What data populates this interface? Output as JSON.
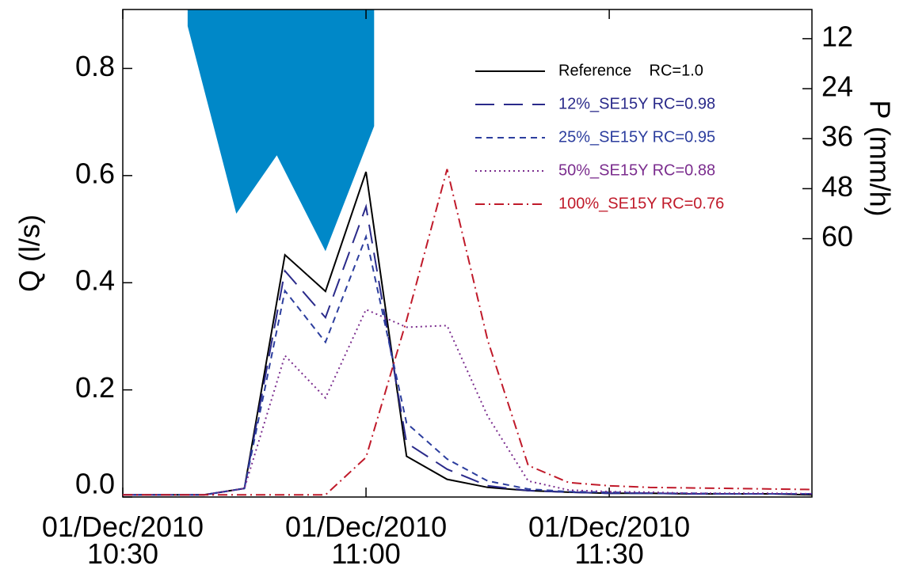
{
  "chart_data": {
    "type": "line",
    "ylabel": "Q (l/s)",
    "y2label": "P (mm/h)",
    "ylim": [
      0,
      0.91
    ],
    "yticks": [
      {
        "value": 0,
        "label": "0.0"
      },
      0.2,
      0.4,
      0.6,
      0.8
    ],
    "y2lim": [
      122,
      5
    ],
    "y2ticks": [
      12,
      24,
      36,
      48,
      60
    ],
    "xlim": [
      "10:30",
      "11:55"
    ],
    "xticks": [
      {
        "value": "10:30",
        "label": "01/Dec/2010 10:30"
      },
      {
        "value": "11:00",
        "label": "01/Dec/2010 11:00"
      },
      {
        "value": "11:30",
        "label": "01/Dec/2010 11:30"
      }
    ],
    "x": [
      "10:30",
      "10:35",
      "10:40",
      "10:45",
      "10:50",
      "10:55",
      "11:00",
      "11:05",
      "11:10",
      "11:15",
      "11:20",
      "11:25",
      "11:30",
      "11:35",
      "11:40",
      "11:45",
      "11:50",
      "11:55"
    ],
    "legend": "upper right",
    "series": [
      {
        "name": "Reference    RC=1.0",
        "color": "#000000",
        "linestyle": "solid",
        "values": [
          0.004,
          0.004,
          0.004,
          0.016,
          0.452,
          0.384,
          0.607,
          0.076,
          0.033,
          0.018,
          0.012,
          0.009,
          0.007,
          0.007,
          0.006,
          0.006,
          0.006,
          0.004
        ]
      },
      {
        "name": "12%_SE15Y RC=0.98",
        "color": "#2a2a8a",
        "linestyle": "longdash",
        "values": [
          0.004,
          0.004,
          0.004,
          0.016,
          0.422,
          0.335,
          0.542,
          0.101,
          0.052,
          0.021,
          0.012,
          0.009,
          0.007,
          0.007,
          0.006,
          0.006,
          0.006,
          0.006
        ]
      },
      {
        "name": "25%_SE15Y RC=0.95",
        "color": "#2c3e9e",
        "linestyle": "dashed",
        "values": [
          0.004,
          0.004,
          0.004,
          0.016,
          0.385,
          0.289,
          0.486,
          0.138,
          0.071,
          0.03,
          0.015,
          0.01,
          0.009,
          0.007,
          0.007,
          0.006,
          0.006,
          0.006
        ]
      },
      {
        "name": "50%_SE15Y RC=0.88",
        "color": "#7b2d8e",
        "linestyle": "dotted",
        "values": [
          0.004,
          0.004,
          0.004,
          0.016,
          0.264,
          0.185,
          0.35,
          0.317,
          0.32,
          0.151,
          0.03,
          0.013,
          0.01,
          0.009,
          0.007,
          0.007,
          0.007,
          0.006
        ]
      },
      {
        "name": "100%_SE15Y RC=0.76",
        "color": "#c01a2a",
        "linestyle": "dashdot",
        "values": [
          0.004,
          0.004,
          0.004,
          0.004,
          0.004,
          0.004,
          0.074,
          0.33,
          0.612,
          0.293,
          0.059,
          0.027,
          0.021,
          0.018,
          0.017,
          0.016,
          0.015,
          0.014
        ]
      },
      {
        "axis": "y2",
        "kind": "area",
        "color": "#0088c8",
        "x": [
          "10:38",
          "10:44",
          "10:49",
          "10:55",
          "11:01"
        ],
        "values": [
          9,
          54,
          40,
          63,
          33
        ]
      }
    ]
  }
}
